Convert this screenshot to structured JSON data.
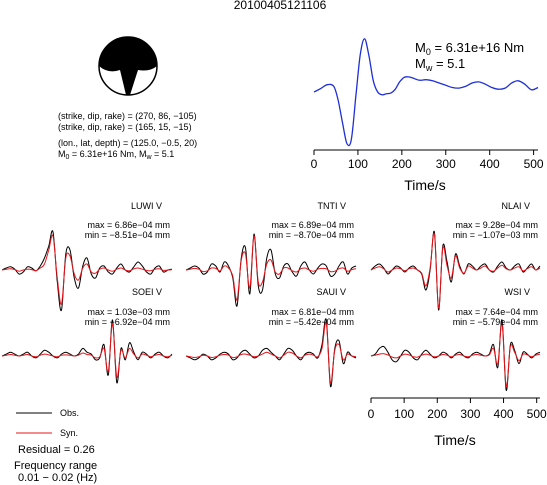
{
  "event_id": "20100405121106",
  "mechanism": {
    "line1": "(strike, dip, rake) = (270, 86, −105)",
    "line2": "(strike, dip, rake) = (165, 15, −15)",
    "line3": "(lon., lat, depth) = (125.0, −0.5, 20)",
    "line4_m0_prefix": "M",
    "line4_m0_sub": "0",
    "line4_m0_val": " = 6.31e+16 Nm, M",
    "line4_mw_sub": "w",
    "line4_mw_val": " = 5.1"
  },
  "stf": {
    "m0_label": "M",
    "m0_sub": "0",
    "m0_val": " = 6.31e+16 Nm",
    "mw_label": "M",
    "mw_sub": "w",
    "mw_val": " = 5.1"
  },
  "legend": {
    "obs": "Obs.",
    "syn": "Syn.",
    "obs_color": "#000000",
    "syn_color": "#e8141a"
  },
  "residual": "Residual = 0.26",
  "freq_title": "Frequency range",
  "freq_range": "0.01 − 0.02 (Hz)",
  "chart_data": [
    {
      "type": "line",
      "name": "source-time-function",
      "xlabel": "Time/s",
      "xlim": [
        0,
        510
      ],
      "xticks": [
        "0",
        "100",
        "200",
        "300",
        "400",
        "500"
      ],
      "color": "#1f2fd6",
      "x": [
        0,
        15,
        30,
        45,
        55,
        65,
        75,
        85,
        95,
        105,
        115,
        125,
        135,
        145,
        155,
        165,
        175,
        185,
        195,
        205,
        215,
        225,
        240,
        255,
        270,
        285,
        300,
        315,
        330,
        345,
        360,
        375,
        390,
        405,
        420,
        435,
        450,
        465,
        480,
        495,
        510
      ],
      "y": [
        0.0,
        0.06,
        0.13,
        0.1,
        -0.15,
        -0.55,
        -0.92,
        -0.85,
        -0.1,
        0.65,
        0.95,
        0.65,
        0.2,
        0.0,
        -0.05,
        -0.03,
        -0.02,
        0.05,
        0.18,
        0.26,
        0.27,
        0.25,
        0.21,
        0.22,
        0.2,
        0.16,
        0.12,
        0.08,
        0.07,
        0.1,
        0.16,
        0.18,
        0.14,
        0.08,
        0.05,
        0.07,
        0.16,
        0.2,
        0.14,
        0.04,
        0.08
      ]
    },
    {
      "type": "line",
      "name": "waveforms",
      "xlabel": "Time/s",
      "xlim": [
        0,
        510
      ],
      "xticks": [
        "0",
        "100",
        "200",
        "300",
        "400",
        "500"
      ],
      "series": [
        {
          "name": "LUWI V",
          "max": "max = 6.86e−04 mm",
          "min": "min = −8.51e−04 mm",
          "obs": [
            0,
            0.05,
            0.08,
            0.02,
            -0.1,
            -0.05,
            0.08,
            0.05,
            -0.02,
            0.1,
            0.3,
            0.6,
            0.95,
            -0.3,
            -1.0,
            0.4,
            0.5,
            -0.2,
            -0.45,
            0.1,
            0.3,
            -0.1,
            -0.2,
            0.05,
            0.1,
            -0.05,
            -0.1,
            0.05,
            0.15,
            0.0,
            -0.05,
            0.08,
            0.2,
            0.1,
            -0.05,
            -0.1,
            0.05,
            0.1,
            -0.05,
            0.0,
            0.02
          ],
          "syn": [
            0,
            0.02,
            0.03,
            0.01,
            -0.03,
            0.0,
            0.02,
            0.01,
            -0.02,
            0.05,
            0.15,
            0.5,
            0.85,
            -0.2,
            -0.85,
            0.3,
            0.35,
            -0.1,
            -0.25,
            0.05,
            0.15,
            -0.05,
            -0.08,
            0.02,
            0.05,
            0.0,
            -0.03,
            0.02,
            0.05,
            0.0,
            -0.02,
            0.03,
            0.05,
            0.02,
            -0.01,
            -0.02,
            0.02,
            0.03,
            -0.01,
            0.0,
            0.01
          ]
        },
        {
          "name": "TNTI V",
          "max": "max = 6.89e−04 mm",
          "min": "min = −8.70e−04 mm",
          "obs": [
            0,
            0.05,
            0.1,
            0.05,
            -0.1,
            -0.05,
            0.15,
            0.1,
            -0.05,
            0.2,
            0.1,
            -0.2,
            -0.9,
            0.3,
            0.55,
            -0.6,
            0.9,
            -0.4,
            -0.5,
            0.3,
            0.5,
            -0.1,
            -0.2,
            0.1,
            0.15,
            -0.05,
            -0.15,
            0.1,
            0.2,
            0.0,
            -0.1,
            0.05,
            0.15,
            0.1,
            -0.15,
            -0.1,
            0.1,
            0.2,
            -0.1,
            0.05,
            0.1
          ],
          "syn": [
            0,
            0.02,
            0.04,
            0.02,
            -0.04,
            -0.02,
            0.05,
            0.04,
            -0.02,
            0.1,
            0.05,
            -0.15,
            -0.75,
            0.25,
            0.4,
            -0.45,
            0.85,
            -0.3,
            -0.3,
            0.15,
            0.25,
            -0.05,
            -0.1,
            0.05,
            0.05,
            -0.02,
            -0.05,
            0.03,
            0.05,
            0.0,
            -0.03,
            0.02,
            0.04,
            0.03,
            -0.04,
            -0.03,
            0.03,
            0.05,
            -0.03,
            0.01,
            0.03
          ]
        },
        {
          "name": "NLAI V",
          "max": "max = 9.28e−04 mm",
          "min": "min = −1.07e−03 mm",
          "obs": [
            0,
            0.1,
            0.15,
            0.05,
            -0.1,
            0.0,
            0.1,
            0.05,
            -0.05,
            0.05,
            0.1,
            0.0,
            -0.1,
            -0.5,
            0.0,
            0.95,
            -1.0,
            0.6,
            0.2,
            -0.3,
            0.4,
            0.1,
            -0.1,
            0.15,
            0.1,
            0.0,
            0.1,
            0.15,
            0.0,
            -0.05,
            0.1,
            0.2,
            0.05,
            0.0,
            0.1,
            0.15,
            -0.05,
            0.05,
            0.15,
            0.0,
            0.1
          ],
          "syn": [
            0,
            0.05,
            0.08,
            0.03,
            -0.05,
            0.0,
            0.05,
            0.03,
            -0.02,
            0.03,
            0.05,
            0.0,
            -0.08,
            -0.4,
            0.05,
            0.9,
            -0.95,
            0.55,
            0.1,
            -0.2,
            0.35,
            0.05,
            -0.08,
            0.1,
            0.05,
            0.0,
            0.05,
            0.1,
            0.0,
            -0.03,
            0.05,
            0.12,
            0.03,
            0.0,
            0.05,
            0.08,
            -0.02,
            0.03,
            0.08,
            0.0,
            0.05
          ]
        },
        {
          "name": "SOEI V",
          "max": "max = 1.03e−03 mm",
          "min": "min = −6.92e−04 mm",
          "obs": [
            0,
            0.05,
            0.1,
            0.05,
            0.0,
            0.05,
            0.1,
            0.0,
            -0.05,
            0.05,
            0.15,
            0.1,
            0.0,
            -0.05,
            0.05,
            0.1,
            0.05,
            0.0,
            0.05,
            0.2,
            0.1,
            0.05,
            -0.1,
            -0.05,
            0.3,
            -0.5,
            0.95,
            -0.7,
            0.2,
            -0.1,
            0.35,
            0.1,
            -0.1,
            0.1,
            0.05,
            -0.05,
            0.05,
            0.1,
            0.0,
            -0.05,
            0.05
          ],
          "syn": [
            0,
            0.02,
            0.04,
            0.02,
            0.0,
            0.02,
            0.04,
            0.0,
            -0.02,
            0.02,
            0.05,
            0.03,
            0.0,
            -0.02,
            0.02,
            0.03,
            0.02,
            0.0,
            0.02,
            0.08,
            0.04,
            0.02,
            -0.05,
            -0.02,
            0.2,
            -0.4,
            0.85,
            -0.55,
            0.15,
            -0.05,
            0.2,
            0.05,
            -0.05,
            0.05,
            0.02,
            -0.02,
            0.02,
            0.04,
            0.0,
            -0.02,
            0.02
          ]
        },
        {
          "name": "SAUI V",
          "max": "max = 6.81e−04 mm",
          "min": "min = −5.42e−04 mm",
          "obs": [
            0,
            -0.05,
            -0.1,
            -0.05,
            0.05,
            0.0,
            -0.1,
            -0.05,
            0.05,
            0.1,
            0.05,
            -0.1,
            -0.05,
            0.1,
            0.15,
            0.05,
            -0.05,
            0.0,
            0.15,
            0.2,
            0.1,
            0.0,
            -0.1,
            0.05,
            0.2,
            0.15,
            0.0,
            -0.1,
            0.05,
            0.1,
            0.05,
            -0.05,
            0.3,
            0.95,
            -0.8,
            0.2,
            0.4,
            -0.2,
            0.1,
            0.0,
            -0.05
          ],
          "syn": [
            0,
            -0.02,
            -0.04,
            -0.02,
            0.02,
            0.0,
            -0.04,
            -0.02,
            0.02,
            0.04,
            0.02,
            -0.04,
            -0.02,
            0.04,
            0.05,
            0.02,
            -0.02,
            0.0,
            0.05,
            0.1,
            0.05,
            0.0,
            -0.05,
            0.02,
            0.1,
            0.08,
            0.0,
            -0.05,
            0.02,
            0.05,
            0.02,
            -0.02,
            0.2,
            0.85,
            -0.7,
            0.15,
            0.3,
            -0.1,
            0.05,
            0.0,
            -0.02
          ]
        },
        {
          "name": "WSI V",
          "max": "max = 7.64e−04 mm",
          "min": "min = −5.79e−04 mm",
          "obs": [
            0,
            0.05,
            0.2,
            0.25,
            0.1,
            -0.1,
            -0.15,
            0.0,
            0.15,
            0.1,
            -0.05,
            -0.1,
            0.05,
            0.15,
            0.05,
            -0.05,
            0.0,
            0.1,
            0.05,
            -0.05,
            0.05,
            0.1,
            0.0,
            -0.05,
            0.05,
            0.1,
            0.05,
            0.0,
            0.05,
            0.3,
            -0.3,
            0.95,
            -0.9,
            0.3,
            0.15,
            -0.2,
            0.1,
            0.05,
            -0.05,
            0.05,
            0.1
          ],
          "syn": [
            0,
            0.02,
            0.05,
            0.06,
            0.03,
            -0.03,
            -0.05,
            0.0,
            0.05,
            0.03,
            -0.02,
            -0.03,
            0.02,
            0.05,
            0.02,
            -0.02,
            0.0,
            0.04,
            0.02,
            -0.02,
            0.02,
            0.04,
            0.0,
            -0.02,
            0.02,
            0.04,
            0.02,
            0.0,
            0.03,
            0.2,
            -0.2,
            0.85,
            -0.8,
            0.25,
            0.1,
            -0.12,
            0.05,
            0.03,
            -0.02,
            0.02,
            0.05
          ]
        }
      ]
    }
  ]
}
